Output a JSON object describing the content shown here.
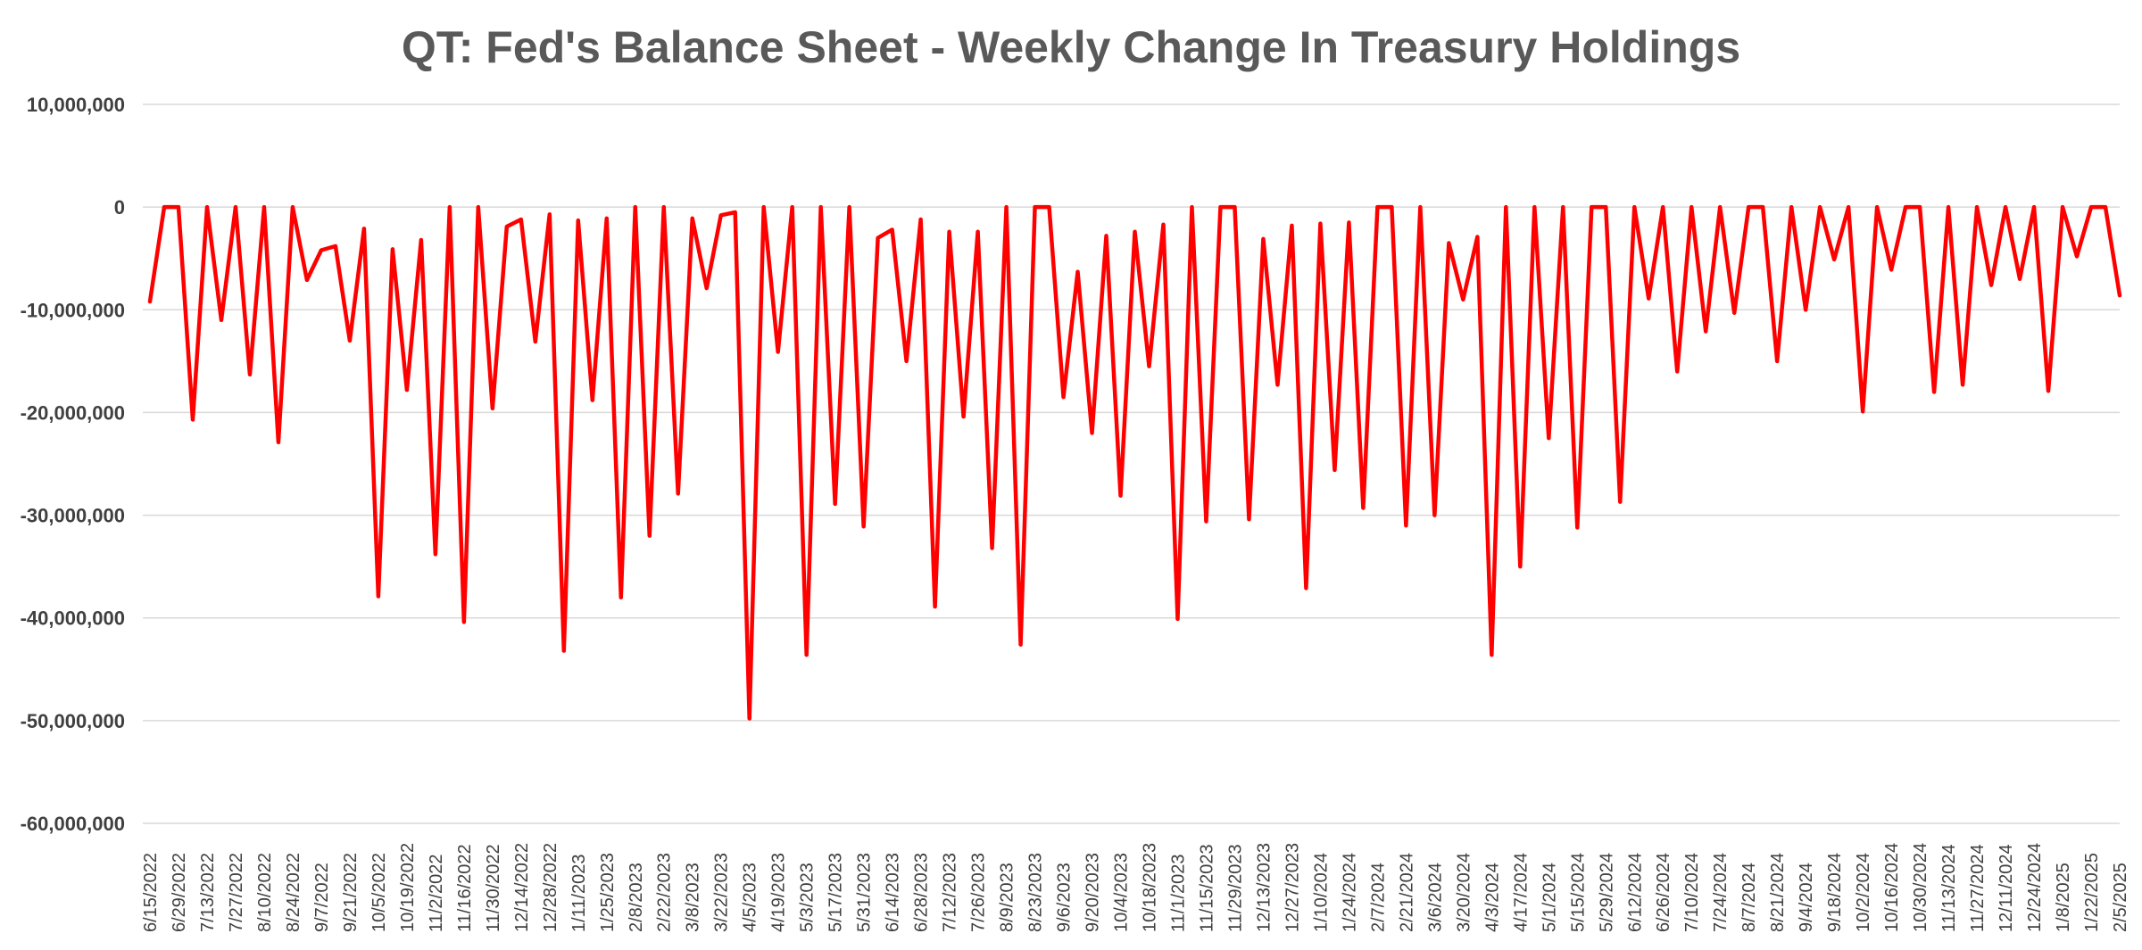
{
  "chart_data": {
    "type": "line",
    "title": "QT: Fed's Balance Sheet - Weekly Change In Treasury Holdings",
    "xlabel": "",
    "ylabel": "",
    "ylim": [
      -60000000,
      10000000
    ],
    "yticks": [
      10000000,
      0,
      -10000000,
      -20000000,
      -30000000,
      -40000000,
      -50000000,
      -60000000
    ],
    "ytick_labels": [
      "10,000,000",
      "0",
      "-10,000,000",
      "-20,000,000",
      "-30,000,000",
      "-40,000,000",
      "-50,000,000",
      "-60,000,000"
    ],
    "x_tick_labels": [
      "6/15/2022",
      "6/29/2022",
      "7/13/2022",
      "7/27/2022",
      "8/10/2022",
      "8/24/2022",
      "9/7/2022",
      "9/21/2022",
      "10/5/2022",
      "10/19/2022",
      "11/2/2022",
      "11/16/2022",
      "11/30/2022",
      "12/14/2022",
      "12/28/2022",
      "1/11/2023",
      "1/25/2023",
      "2/8/2023",
      "2/22/2023",
      "3/8/2023",
      "3/22/2023",
      "4/5/2023",
      "4/19/2023",
      "5/3/2023",
      "5/17/2023",
      "5/31/2023",
      "6/14/2023",
      "6/28/2023",
      "7/12/2023",
      "7/26/2023",
      "8/9/2023",
      "8/23/2023",
      "9/6/2023",
      "9/20/2023",
      "10/4/2023",
      "10/18/2023",
      "11/1/2023",
      "11/15/2023",
      "11/29/2023",
      "12/13/2023",
      "12/27/2023",
      "1/10/2024",
      "1/24/2024",
      "2/7/2024",
      "2/21/2024",
      "3/6/2024",
      "3/20/2024",
      "4/3/2024",
      "4/17/2024",
      "5/1/2024",
      "5/15/2024",
      "5/29/2024",
      "6/12/2024",
      "6/26/2024",
      "7/10/2024",
      "7/24/2024",
      "8/7/2024",
      "8/21/2024",
      "9/4/2024",
      "9/18/2024",
      "10/2/2024",
      "10/16/2024",
      "10/30/2024",
      "11/13/2024",
      "11/27/2024",
      "12/11/2024",
      "12/24/2024",
      "1/8/2025",
      "1/22/2025",
      "2/5/2025"
    ],
    "grid": true,
    "legend": "none",
    "series": [
      {
        "color": "#ff0000",
        "values": [
          -9200000,
          0,
          0,
          -20700000,
          0,
          -11000000,
          0,
          -16300000,
          0,
          -22900000,
          0,
          -7100000,
          -4200000,
          -3800000,
          -13000000,
          -2100000,
          -37900000,
          -4100000,
          -17800000,
          -3200000,
          -33800000,
          0,
          -40400000,
          0,
          -19600000,
          -1900000,
          -1200000,
          -13100000,
          -700000,
          -43200000,
          -1300000,
          -18800000,
          -1100000,
          -38000000,
          0,
          -32000000,
          0,
          -27900000,
          -1100000,
          -7900000,
          -800000,
          -500000,
          -49800000,
          0,
          -14100000,
          0,
          -43600000,
          0,
          -28900000,
          0,
          -31100000,
          -3000000,
          -2200000,
          -15000000,
          -1200000,
          -38900000,
          -2400000,
          -20400000,
          -2400000,
          -33200000,
          0,
          -42600000,
          0,
          0,
          -18500000,
          -6300000,
          -22000000,
          -2800000,
          -28100000,
          -2400000,
          -15500000,
          -1700000,
          -40100000,
          0,
          -30600000,
          0,
          0,
          -30400000,
          -3100000,
          -17300000,
          -1800000,
          -37100000,
          -1600000,
          -25600000,
          -1500000,
          -29300000,
          0,
          0,
          -31000000,
          0,
          -30000000,
          -3500000,
          -9000000,
          -2900000,
          -43600000,
          0,
          -35000000,
          0,
          -22500000,
          0,
          -31200000,
          0,
          0,
          -28700000,
          0,
          -8900000,
          0,
          -16000000,
          0,
          -12100000,
          0,
          -10300000,
          0,
          0,
          -15000000,
          0,
          -10000000,
          0,
          -5100000,
          0,
          -19900000,
          0,
          -6100000,
          0,
          0,
          -18000000,
          0,
          -17300000,
          0,
          -7600000,
          0,
          -7000000,
          0,
          -17900000,
          0,
          -4800000,
          0,
          0,
          -8600000
        ]
      }
    ]
  }
}
